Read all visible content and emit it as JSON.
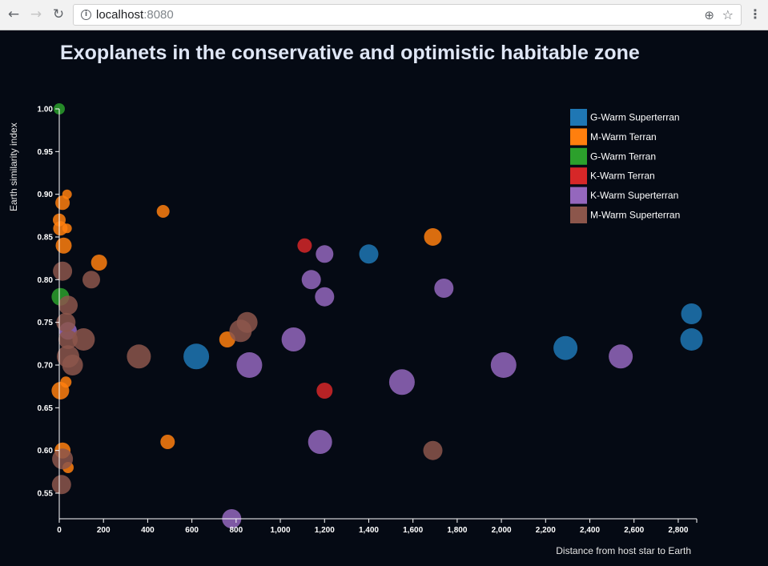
{
  "browser": {
    "url_host": "localhost",
    "url_port": ":8080",
    "back_icon": "arrow-left-icon",
    "forward_icon": "arrow-right-icon",
    "reload_icon": "reload-icon",
    "info_icon": "info-icon",
    "zoom_icon": "zoom-icon",
    "bookmark_icon": "star-icon",
    "menu_icon": "kebab-menu-icon"
  },
  "chart_data": {
    "type": "scatter",
    "title": "Exoplanets in the conservative and optimistic habitable zone",
    "xlabel": "Distance from host star to Earth",
    "ylabel": "Earth similarity index",
    "xlim": [
      0,
      2880
    ],
    "ylim": [
      0.52,
      1.0
    ],
    "xticks": [
      "0",
      "200",
      "400",
      "600",
      "800",
      "1,000",
      "1,200",
      "1,400",
      "1,600",
      "1,800",
      "2,000",
      "2,200",
      "2,400",
      "2,600",
      "2,800"
    ],
    "yticks": [
      "0.55",
      "0.60",
      "0.65",
      "0.70",
      "0.75",
      "0.80",
      "0.85",
      "0.90",
      "0.95",
      "1.00"
    ],
    "legend_position": "top-right",
    "grid": false,
    "bubble_size": "relative",
    "series": [
      {
        "name": "G-Warm Superterran",
        "color": "#1f77b4",
        "points": [
          {
            "x": 1400,
            "y": 0.83,
            "s": 12
          },
          {
            "x": 620,
            "y": 0.71,
            "s": 16
          },
          {
            "x": 2290,
            "y": 0.72,
            "s": 15
          },
          {
            "x": 2860,
            "y": 0.76,
            "s": 13
          },
          {
            "x": 2860,
            "y": 0.73,
            "s": 14
          }
        ]
      },
      {
        "name": "M-Warm Terran",
        "color": "#ff7f0e",
        "points": [
          {
            "x": 470,
            "y": 0.88,
            "s": 8
          },
          {
            "x": 35,
            "y": 0.9,
            "s": 6
          },
          {
            "x": 15,
            "y": 0.89,
            "s": 9
          },
          {
            "x": 0,
            "y": 0.87,
            "s": 8
          },
          {
            "x": 35,
            "y": 0.86,
            "s": 6
          },
          {
            "x": 5,
            "y": 0.86,
            "s": 9
          },
          {
            "x": 20,
            "y": 0.84,
            "s": 10
          },
          {
            "x": 180,
            "y": 0.82,
            "s": 10
          },
          {
            "x": 1690,
            "y": 0.85,
            "s": 11
          },
          {
            "x": 760,
            "y": 0.73,
            "s": 10
          },
          {
            "x": 30,
            "y": 0.68,
            "s": 7
          },
          {
            "x": 5,
            "y": 0.67,
            "s": 11
          },
          {
            "x": 490,
            "y": 0.61,
            "s": 9
          },
          {
            "x": 15,
            "y": 0.6,
            "s": 10
          },
          {
            "x": 40,
            "y": 0.58,
            "s": 7
          }
        ]
      },
      {
        "name": "G-Warm Terran",
        "color": "#2ca02c",
        "points": [
          {
            "x": 0,
            "y": 1.0,
            "s": 7
          },
          {
            "x": 5,
            "y": 0.78,
            "s": 11
          }
        ]
      },
      {
        "name": "K-Warm Terran",
        "color": "#d62728",
        "points": [
          {
            "x": 1110,
            "y": 0.84,
            "s": 9
          },
          {
            "x": 1200,
            "y": 0.67,
            "s": 10
          }
        ]
      },
      {
        "name": "K-Warm Superterran",
        "color": "#9467bd",
        "points": [
          {
            "x": 1200,
            "y": 0.83,
            "s": 11
          },
          {
            "x": 1140,
            "y": 0.8,
            "s": 12
          },
          {
            "x": 1200,
            "y": 0.78,
            "s": 12
          },
          {
            "x": 1740,
            "y": 0.79,
            "s": 12
          },
          {
            "x": 1060,
            "y": 0.73,
            "s": 15
          },
          {
            "x": 860,
            "y": 0.7,
            "s": 16
          },
          {
            "x": 1550,
            "y": 0.68,
            "s": 16
          },
          {
            "x": 2010,
            "y": 0.7,
            "s": 16
          },
          {
            "x": 2540,
            "y": 0.71,
            "s": 15
          },
          {
            "x": 1180,
            "y": 0.61,
            "s": 15
          },
          {
            "x": 780,
            "y": 0.52,
            "s": 12
          },
          {
            "x": 40,
            "y": 0.74,
            "s": 11
          }
        ]
      },
      {
        "name": "M-Warm Superterran",
        "color": "#8c564b",
        "points": [
          {
            "x": 15,
            "y": 0.81,
            "s": 12
          },
          {
            "x": 145,
            "y": 0.8,
            "s": 11
          },
          {
            "x": 40,
            "y": 0.77,
            "s": 12
          },
          {
            "x": 30,
            "y": 0.75,
            "s": 12
          },
          {
            "x": 40,
            "y": 0.73,
            "s": 12
          },
          {
            "x": 110,
            "y": 0.73,
            "s": 14
          },
          {
            "x": 40,
            "y": 0.71,
            "s": 14
          },
          {
            "x": 60,
            "y": 0.7,
            "s": 13
          },
          {
            "x": 360,
            "y": 0.71,
            "s": 15
          },
          {
            "x": 820,
            "y": 0.74,
            "s": 14
          },
          {
            "x": 850,
            "y": 0.75,
            "s": 13
          },
          {
            "x": 15,
            "y": 0.59,
            "s": 13
          },
          {
            "x": 10,
            "y": 0.56,
            "s": 12
          },
          {
            "x": 1690,
            "y": 0.6,
            "s": 12
          }
        ]
      }
    ]
  }
}
